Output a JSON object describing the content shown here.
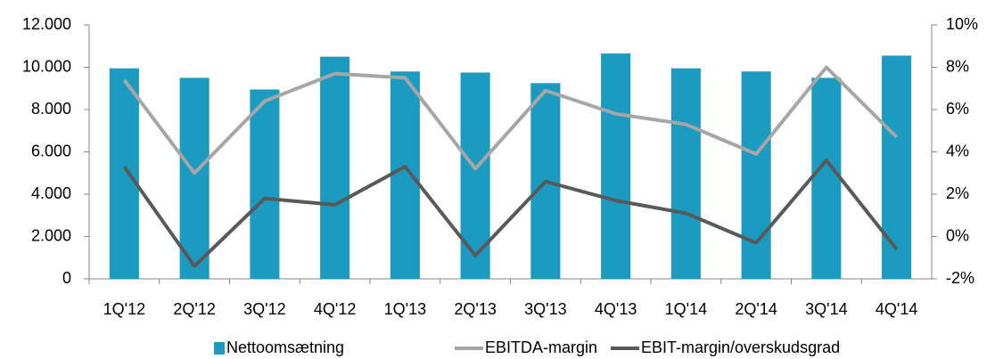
{
  "chart_data": {
    "type": "bar",
    "categories": [
      "1Q'12",
      "2Q'12",
      "3Q'12",
      "4Q'12",
      "1Q'13",
      "2Q'13",
      "3Q'13",
      "4Q'13",
      "1Q'14",
      "2Q'14",
      "3Q'14",
      "4Q'14"
    ],
    "series": [
      {
        "name": "Nettoomsætning",
        "type": "bar",
        "color": "#1a9bbf",
        "values": [
          9950,
          9500,
          8950,
          10500,
          9800,
          9750,
          9250,
          10650,
          9950,
          9800,
          9500,
          10550
        ]
      },
      {
        "name": "EBITDA-margin",
        "type": "line",
        "axis": "y2",
        "color": "#a6a6a6",
        "values": [
          7.4,
          3.0,
          6.4,
          7.7,
          7.5,
          3.2,
          6.9,
          5.8,
          5.3,
          3.9,
          8.0,
          4.7
        ]
      },
      {
        "name": "EBIT-margin/overskudsgrad",
        "type": "line",
        "axis": "y2",
        "color": "#595959",
        "values": [
          3.3,
          -1.4,
          1.8,
          1.5,
          3.3,
          -0.9,
          2.6,
          1.7,
          1.1,
          -0.3,
          3.6,
          -0.6
        ]
      }
    ],
    "ylim": [
      0,
      12000
    ],
    "yticks": [
      0,
      {
        "value": 2000,
        "label": "2.000"
      },
      {
        "value": 4000,
        "label": "4.000"
      },
      {
        "value": 6000,
        "label": "6.000"
      },
      {
        "value": 8000,
        "label": "8.000"
      },
      {
        "value": 10000,
        "label": "10.000"
      },
      {
        "value": 12000,
        "label": "12.000"
      }
    ],
    "y2lim": [
      -2,
      10
    ],
    "y2ticks": [
      {
        "value": -2,
        "label": "-2%"
      },
      {
        "value": 0,
        "label": "0%"
      },
      {
        "value": 2,
        "label": "2%"
      },
      {
        "value": 4,
        "label": "4%"
      },
      {
        "value": 6,
        "label": "6%"
      },
      {
        "value": 8,
        "label": "8%"
      },
      {
        "value": 10,
        "label": "10%"
      }
    ],
    "legend": "bottom"
  }
}
